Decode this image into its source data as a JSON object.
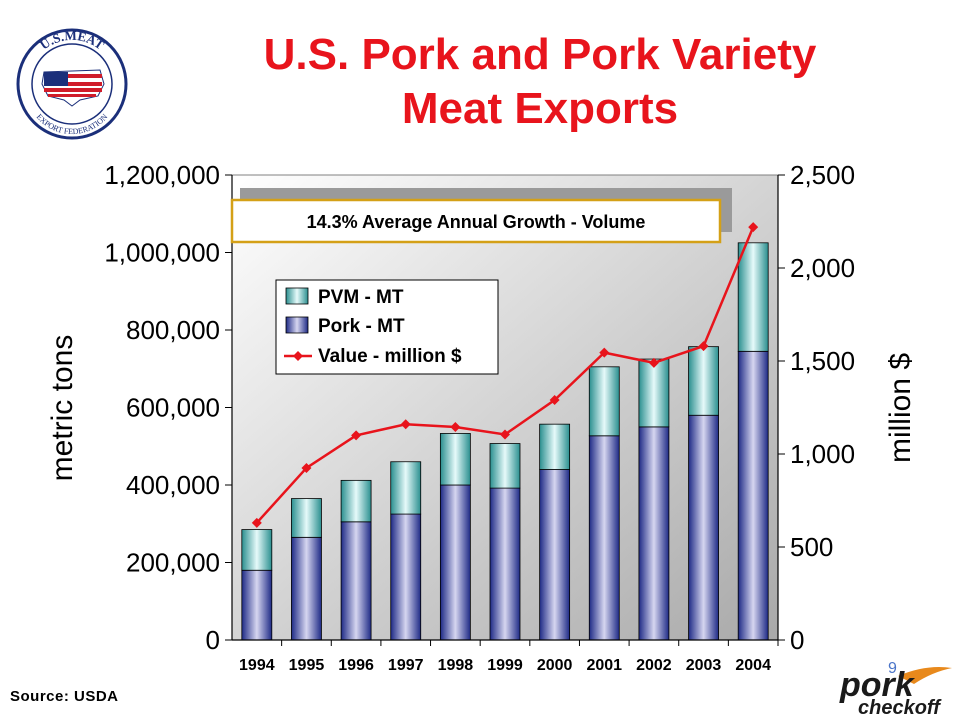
{
  "title_line1": "U.S. Pork and Pork Variety",
  "title_line2": "Meat Exports",
  "logo": {
    "text_top": "U.S.MEAT",
    "text_bottom": "EXPORT FEDERATION"
  },
  "source": "Source:  USDA",
  "page_number": "9",
  "brand": {
    "line1": "pork",
    "line2": "checkoff"
  },
  "colors": {
    "title": "#e8141c",
    "line": "#e8141c",
    "callout_border": "#d4a017"
  },
  "chart_data": {
    "type": "bar",
    "stacked": true,
    "categories": [
      "1994",
      "1995",
      "1996",
      "1997",
      "1998",
      "1999",
      "2000",
      "2001",
      "2002",
      "2003",
      "2004"
    ],
    "series": [
      {
        "name": "Pork - MT",
        "values": [
          180000,
          265000,
          305000,
          325000,
          400000,
          392000,
          440000,
          527000,
          550000,
          580000,
          745000
        ]
      },
      {
        "name": "PVM - MT",
        "values": [
          105000,
          100000,
          107000,
          135000,
          133000,
          115000,
          117000,
          178000,
          175000,
          177000,
          280000
        ]
      }
    ],
    "line_series": {
      "name": "Value - million $",
      "axis": "right",
      "values": [
        630,
        925,
        1100,
        1160,
        1145,
        1105,
        1290,
        1545,
        1490,
        1580,
        2220
      ]
    },
    "ylabel": "metric tons",
    "ylabel_right": "million $",
    "ylim": [
      0,
      1200000
    ],
    "ylim_right": [
      0,
      2500
    ],
    "yticks": [
      "0",
      "200,000",
      "400,000",
      "600,000",
      "800,000",
      "1,000,000",
      "1,200,000"
    ],
    "yticks_right": [
      "0",
      "500",
      "1,000",
      "1,500",
      "2,000",
      "2,500"
    ],
    "legend": {
      "placement": "upper-left-inside",
      "items": [
        "PVM - MT",
        "Pork - MT",
        "Value - million $"
      ]
    },
    "annotation": "14.3% Average Annual Growth - Volume",
    "grid": false
  }
}
